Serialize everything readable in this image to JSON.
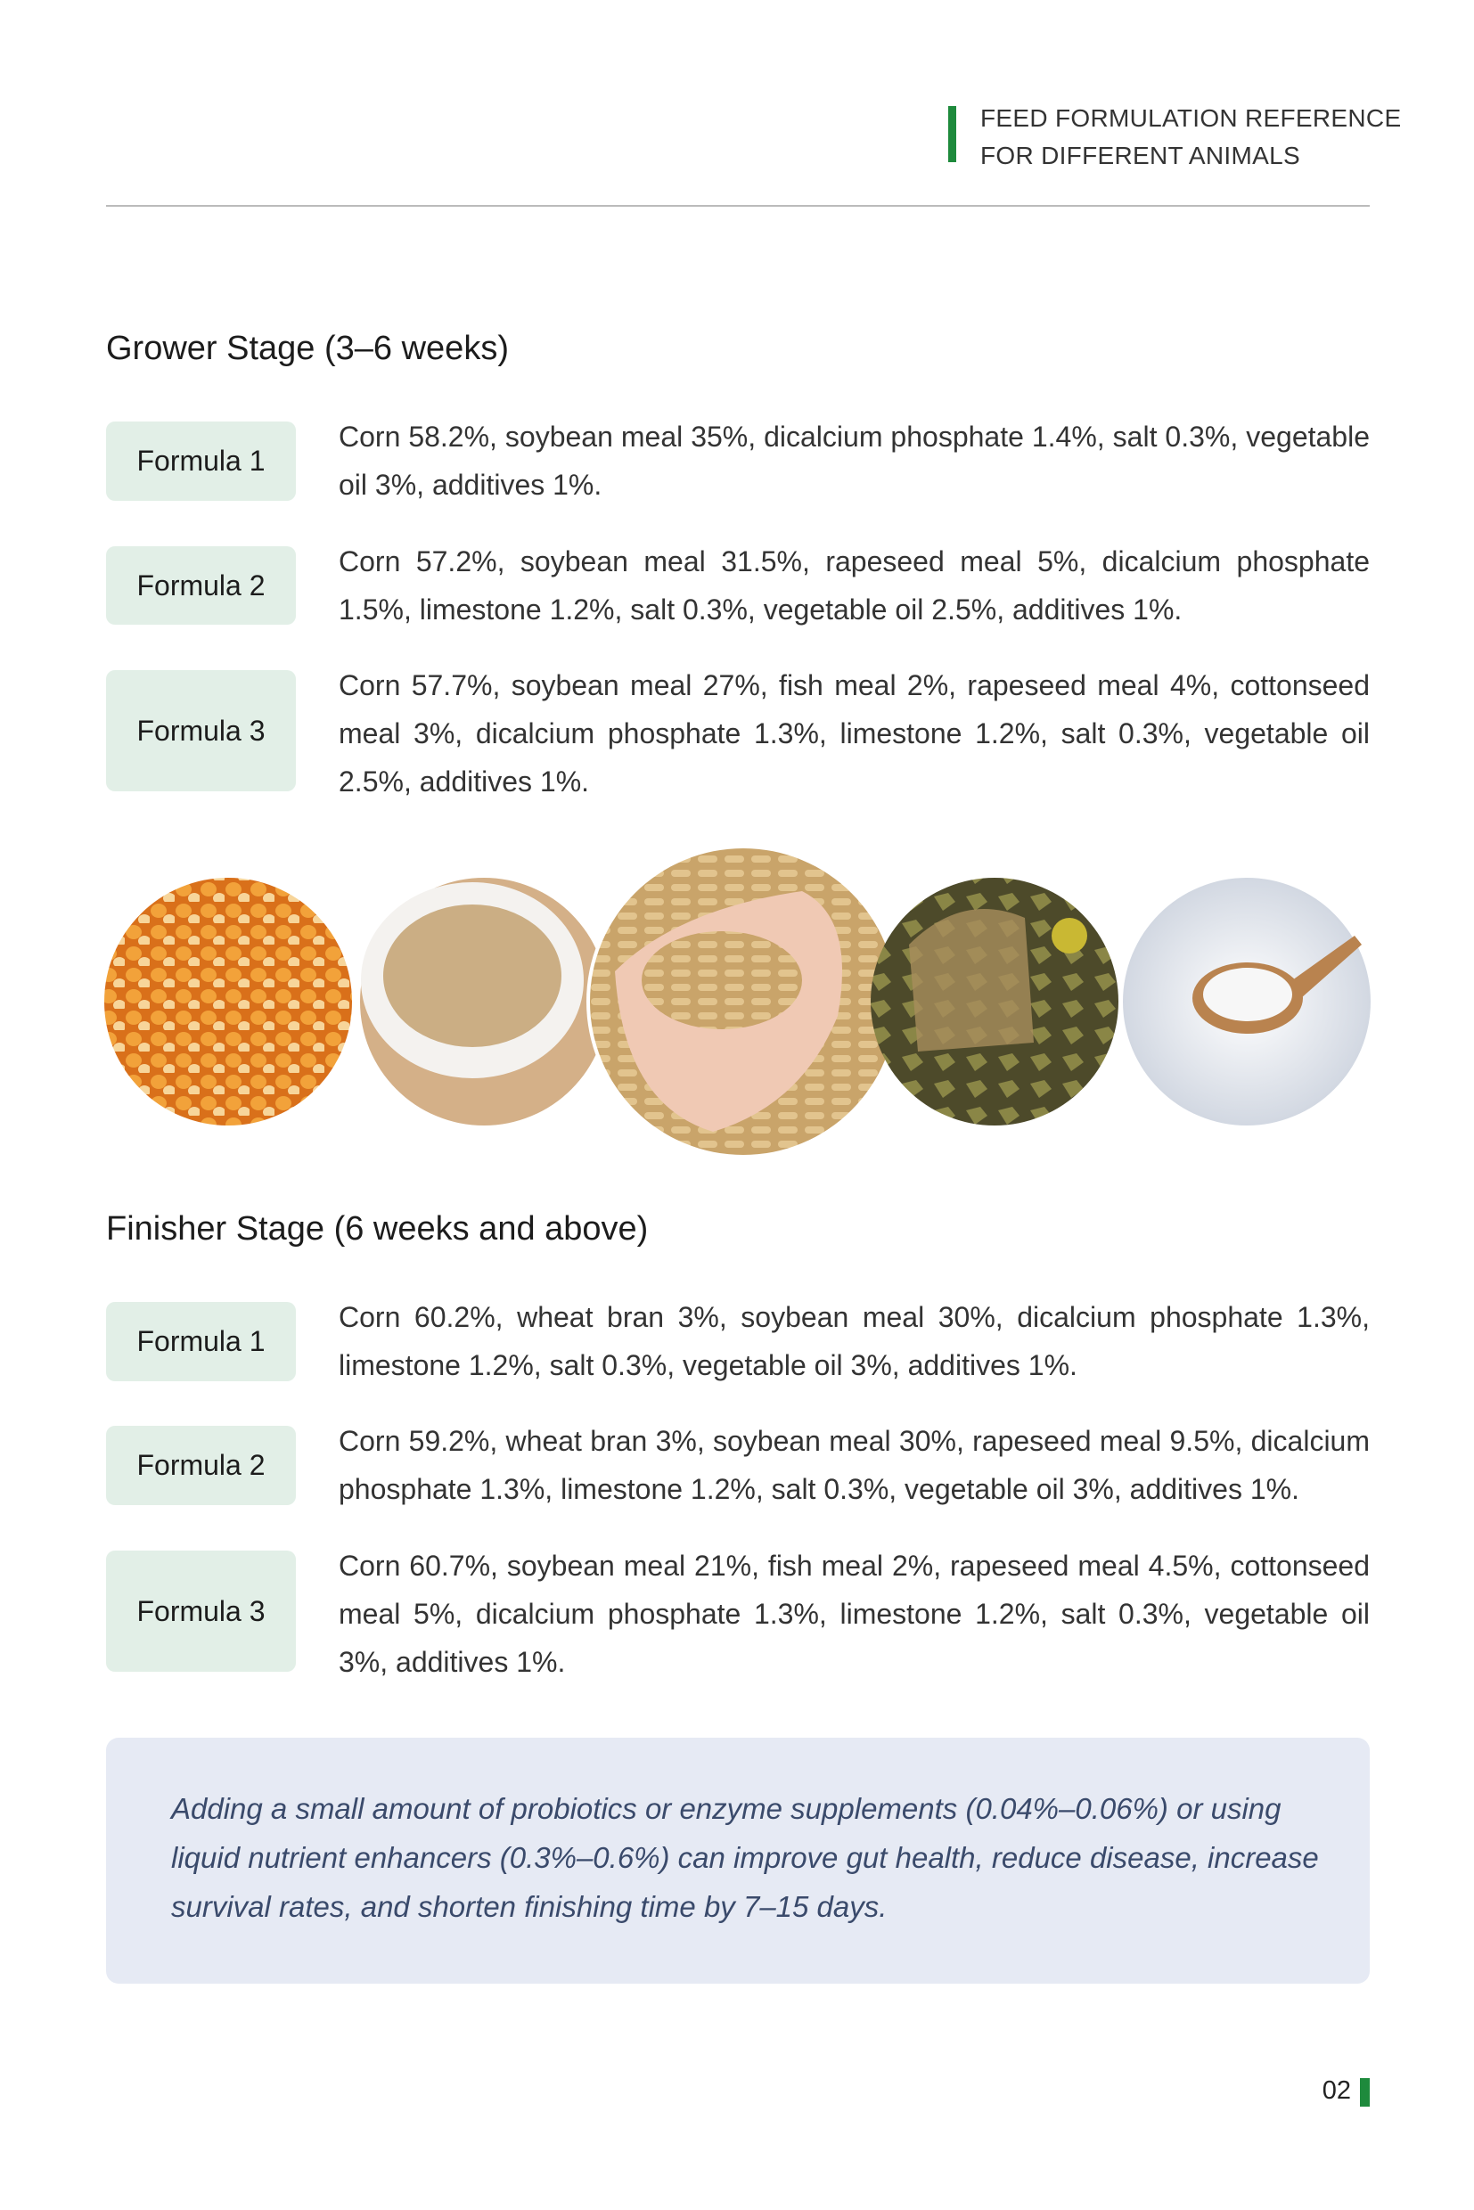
{
  "header": {
    "title_lines": [
      "FEED FORMULATION REFERENCE",
      "FOR DIFFERENT ANIMALS"
    ]
  },
  "sections": [
    {
      "heading": "Grower Stage (3–6 weeks)",
      "formulas": [
        {
          "label": "Formula 1",
          "text": "Corn 58.2%, soybean meal 35%, dicalcium phosphate 1.4%, salt 0.3%, vegetable oil 3%, additives 1%."
        },
        {
          "label": "Formula 2",
          "text": "Corn 57.2%, soybean meal 31.5%, rapeseed meal 5%, dicalcium phosphate 1.5%, limestone 1.2%, salt 0.3%, vegetable oil 2.5%, additives 1%."
        },
        {
          "label": "Formula 3",
          "text": "Corn 57.7%, soybean meal 27%, fish meal 2%, rapeseed meal 4%, cottonseed meal 3%, dicalcium phosphate 1.3%, limestone 1.2%, salt 0.3%, vegetable oil 2.5%, additives 1%."
        }
      ]
    },
    {
      "heading": "Finisher Stage (6 weeks and above)",
      "formulas": [
        {
          "label": "Formula 1",
          "text": "Corn 60.2%, wheat bran 3%, soybean meal 30%, dicalcium phosphate 1.3%, limestone 1.2%, salt 0.3%, vegetable oil 3%, additives 1%."
        },
        {
          "label": "Formula 2",
          "text": "Corn 59.2%, wheat bran 3%, soybean meal 30%, rapeseed meal 9.5%, dicalcium phosphate 1.3%, limestone 1.2%, salt 0.3%, vegetable oil 3%, additives 1%."
        },
        {
          "label": "Formula 3",
          "text": "Corn 60.7%, soybean meal 21%, fish meal 2%, rapeseed meal 4.5%, cottonseed meal 5%, dicalcium phosphate 1.3%, limestone 1.2%, salt 0.3%, vegetable oil 3%, additives 1%."
        }
      ]
    }
  ],
  "note": "Adding a small amount of probiotics or enzyme supplements (0.04%–0.06%) or using liquid nutrient enhancers (0.3%–0.6%) can improve gut health, reduce disease, increase survival rates, and shorten finishing time by 7–15 days.",
  "page_number": "02"
}
